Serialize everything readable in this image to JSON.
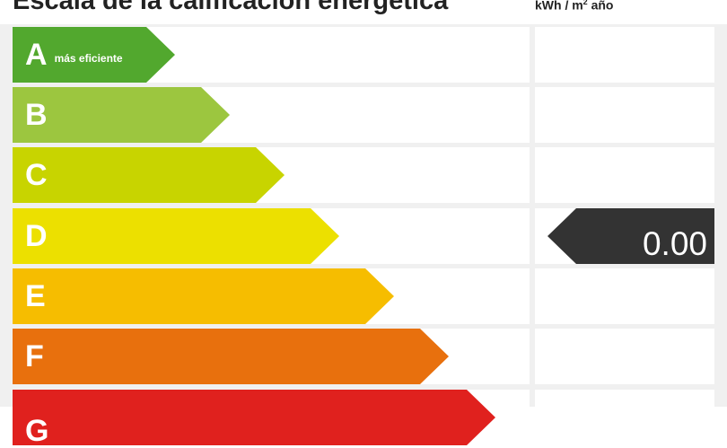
{
  "header": {
    "title": "Escala de la calificación energética",
    "unit": "kWh / m",
    "unit_sup": "2",
    "unit_suffix": " año"
  },
  "classes": [
    {
      "letter": "A",
      "note": "más eficiente",
      "color": "#52a82e"
    },
    {
      "letter": "B",
      "note": "",
      "color": "#9cc63f"
    },
    {
      "letter": "C",
      "note": "",
      "color": "#c8d400"
    },
    {
      "letter": "D",
      "note": "",
      "color": "#ece000"
    },
    {
      "letter": "E",
      "note": "",
      "color": "#f6bd00"
    },
    {
      "letter": "F",
      "note": "",
      "color": "#e8700d"
    },
    {
      "letter": "G",
      "note": "",
      "color": "#e0211e"
    }
  ],
  "indicator": {
    "value": "0.00",
    "row_letter": "D",
    "color": "#333333"
  }
}
